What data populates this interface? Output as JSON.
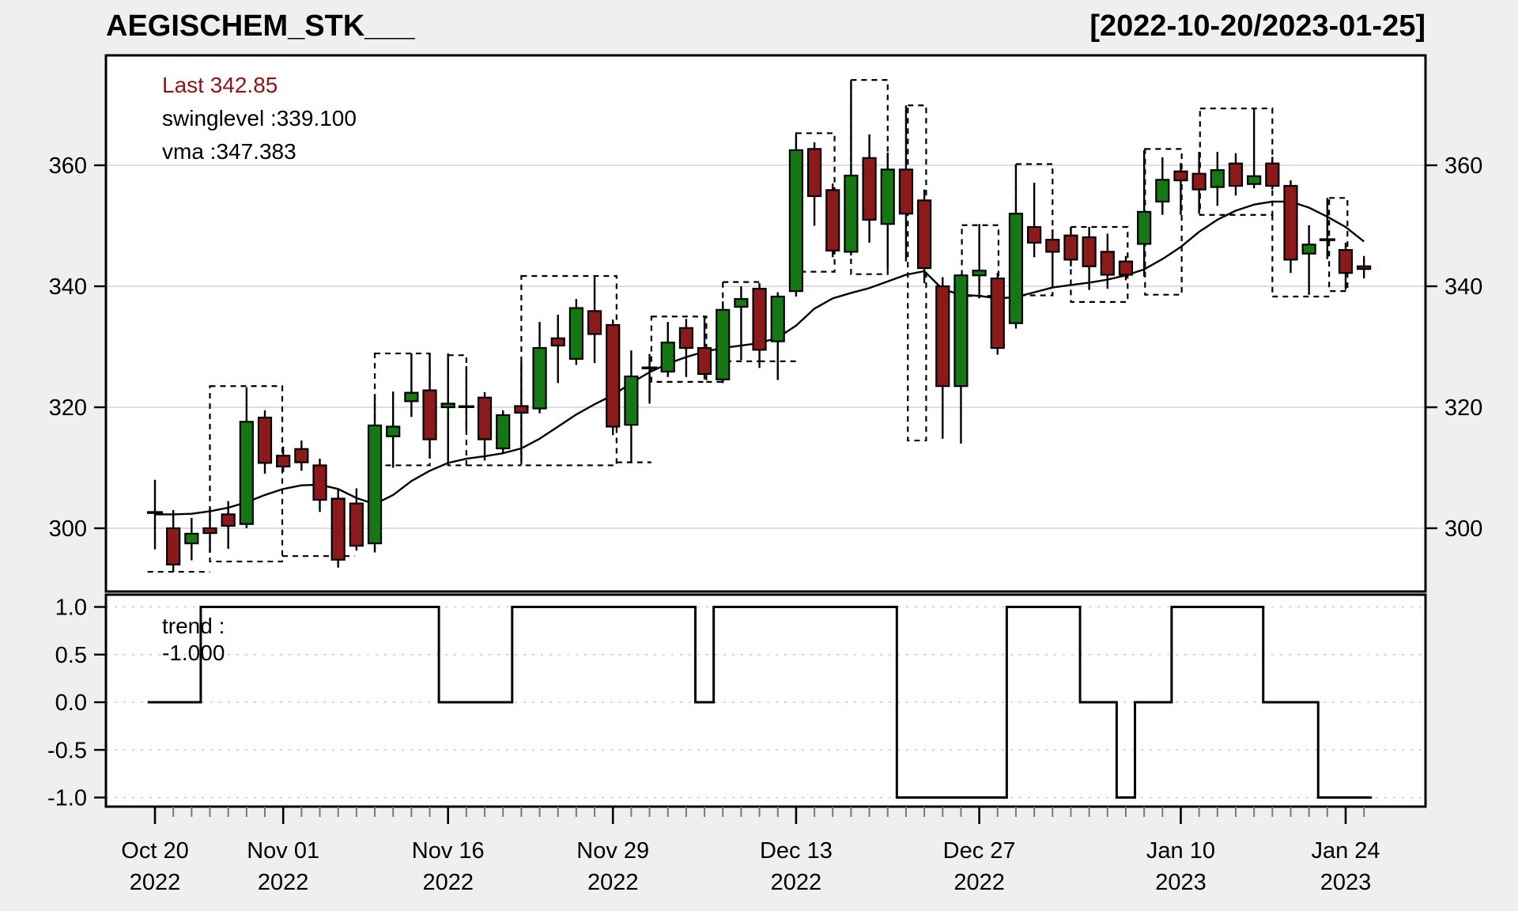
{
  "title": "AEGISCHEM_STK___",
  "date_range": "[2022-10-20/2023-01-25]",
  "legend": {
    "last": "Last 342.85",
    "swinglevel": "swinglevel :339.100",
    "vma": "vma :347.383"
  },
  "trend_label": {
    "line1": "trend :",
    "line2": "-1.000"
  },
  "colors": {
    "up": "#157815",
    "down": "#8c1a1a",
    "outline": "#000000",
    "background": "#efefef",
    "panel": "#ffffff",
    "grid": "#d4d4d4",
    "trend_grid": "#c9c9c9",
    "last_text": "#8b1414",
    "minor_tick": "#777777"
  },
  "y_axis": {
    "price_ticks": [
      360,
      340,
      320,
      300
    ],
    "trend_ticks": [
      {
        "v": 1.0,
        "label": "1.0"
      },
      {
        "v": 0.5,
        "label": "0.5"
      },
      {
        "v": 0.0,
        "label": "0.0"
      },
      {
        "v": -0.5,
        "label": "-0.5"
      },
      {
        "v": -1.0,
        "label": "-1.0"
      }
    ]
  },
  "x_axis": {
    "labels": [
      {
        "idx": 1,
        "l1": "Oct 20",
        "l2": "2022"
      },
      {
        "idx": 8,
        "l1": "Nov 01",
        "l2": "2022"
      },
      {
        "idx": 17,
        "l1": "Nov 16",
        "l2": "2022"
      },
      {
        "idx": 26,
        "l1": "Nov 29",
        "l2": "2022"
      },
      {
        "idx": 36,
        "l1": "Dec 13",
        "l2": "2022"
      },
      {
        "idx": 46,
        "l1": "Dec 27",
        "l2": "2022"
      },
      {
        "idx": 57,
        "l1": "Jan 10",
        "l2": "2023"
      },
      {
        "idx": 66,
        "l1": "Jan 24",
        "l2": "2023"
      }
    ]
  },
  "chart_data": {
    "type": "candlestick",
    "title": "AEGISCHEM_STK___",
    "subpanel": "trend",
    "x_range_dates": [
      "2022-10-20",
      "2023-01-25"
    ],
    "price_axis_ticks": [
      300,
      320,
      340,
      360
    ],
    "price_range_shown": [
      289.5,
      378.5
    ],
    "trend_range_shown": [
      -1.1,
      1.12
    ],
    "last": 342.85,
    "swinglevel": 339.1,
    "vma_last": 347.383,
    "trend_last": -1.0,
    "ohlc": [
      [
        302.6,
        308.0,
        296.5,
        302.6
      ],
      [
        300.0,
        303.0,
        292.8,
        294.0
      ],
      [
        297.5,
        301.7,
        294.7,
        299.1
      ],
      [
        300.0,
        303.3,
        296.0,
        299.2
      ],
      [
        302.3,
        304.5,
        296.6,
        300.4
      ],
      [
        300.7,
        323.3,
        300.0,
        317.6
      ],
      [
        318.3,
        319.5,
        309.0,
        310.8
      ],
      [
        312.0,
        313.5,
        309.3,
        310.2
      ],
      [
        313.1,
        314.5,
        309.5,
        310.9
      ],
      [
        310.4,
        311.5,
        302.7,
        304.7
      ],
      [
        304.9,
        306.5,
        293.5,
        294.8
      ],
      [
        304.1,
        306.6,
        296.3,
        297.1
      ],
      [
        297.5,
        322.0,
        296.1,
        317.0
      ],
      [
        315.2,
        322.6,
        310.0,
        316.8
      ],
      [
        321.0,
        328.9,
        318.4,
        322.4
      ],
      [
        322.8,
        328.9,
        311.5,
        314.7
      ],
      [
        320.0,
        328.9,
        310.6,
        320.6
      ],
      [
        320.1,
        326.8,
        316.3,
        320.1
      ],
      [
        321.6,
        322.5,
        311.2,
        314.7
      ],
      [
        313.2,
        319.5,
        312.5,
        318.7
      ],
      [
        320.2,
        327.6,
        311.1,
        319.1
      ],
      [
        319.8,
        334.1,
        319.0,
        329.8
      ],
      [
        331.4,
        335.3,
        324.0,
        330.2
      ],
      [
        328.0,
        337.9,
        327.0,
        336.4
      ],
      [
        335.9,
        341.7,
        327.3,
        332.1
      ],
      [
        333.6,
        334.5,
        315.4,
        316.8
      ],
      [
        317.1,
        329.4,
        310.8,
        325.1
      ],
      [
        326.5,
        328.8,
        320.6,
        326.5
      ],
      [
        325.9,
        334.1,
        325.0,
        330.7
      ],
      [
        333.1,
        334.6,
        325.0,
        329.8
      ],
      [
        329.8,
        335.0,
        324.6,
        325.5
      ],
      [
        324.6,
        337.5,
        324.0,
        336.1
      ],
      [
        336.6,
        340.0,
        327.8,
        337.9
      ],
      [
        339.6,
        340.5,
        326.5,
        329.5
      ],
      [
        330.9,
        339.0,
        324.5,
        338.3
      ],
      [
        339.2,
        364.8,
        338.3,
        362.5
      ],
      [
        362.7,
        363.8,
        350.0,
        354.9
      ],
      [
        355.9,
        357.0,
        344.8,
        345.9
      ],
      [
        345.7,
        374.1,
        345.1,
        358.3
      ],
      [
        361.2,
        365.1,
        347.2,
        351.0
      ],
      [
        350.3,
        362.1,
        342.8,
        359.3
      ],
      [
        359.3,
        369.9,
        344.1,
        352.0
      ],
      [
        354.2,
        356.0,
        340.5,
        343.0
      ],
      [
        340.0,
        341.5,
        314.8,
        323.5
      ],
      [
        323.5,
        342.0,
        314.0,
        341.8
      ],
      [
        341.8,
        350.3,
        338.0,
        342.6
      ],
      [
        341.3,
        342.2,
        328.7,
        329.8
      ],
      [
        333.9,
        360.2,
        333.0,
        352.0
      ],
      [
        349.8,
        357.1,
        344.8,
        347.2
      ],
      [
        347.7,
        349.4,
        340.0,
        345.7
      ],
      [
        348.4,
        349.8,
        343.3,
        344.4
      ],
      [
        348.1,
        349.8,
        339.4,
        343.3
      ],
      [
        345.7,
        348.7,
        339.6,
        341.9
      ],
      [
        344.1,
        345.0,
        341.0,
        341.9
      ],
      [
        347.0,
        362.5,
        341.6,
        352.3
      ],
      [
        354.0,
        361.3,
        351.8,
        357.6
      ],
      [
        359.0,
        360.4,
        351.8,
        357.5
      ],
      [
        358.6,
        362.2,
        352.0,
        356.0
      ],
      [
        356.4,
        362.2,
        353.3,
        359.2
      ],
      [
        360.3,
        362.0,
        355.0,
        356.6
      ],
      [
        356.9,
        369.3,
        356.2,
        358.2
      ],
      [
        360.3,
        361.4,
        356.0,
        356.6
      ],
      [
        356.6,
        357.5,
        342.2,
        344.4
      ],
      [
        345.4,
        350.1,
        338.6,
        346.9
      ],
      [
        347.7,
        354.6,
        344.5,
        347.7
      ],
      [
        346.0,
        347.2,
        339.4,
        342.2
      ],
      [
        343.3,
        345.0,
        341.3,
        342.85
      ]
    ],
    "vma": [
      302.3,
      302.3,
      302.4,
      302.8,
      303.4,
      304.3,
      305.5,
      306.5,
      307.1,
      307.2,
      306.5,
      305.0,
      304.0,
      305.5,
      307.8,
      309.5,
      310.8,
      311.5,
      311.9,
      312.4,
      313.2,
      314.8,
      316.8,
      318.8,
      320.5,
      322.0,
      324.0,
      325.8,
      327.2,
      328.3,
      329.2,
      329.8,
      330.2,
      330.6,
      331.5,
      333.5,
      336.3,
      338.0,
      338.9,
      339.7,
      340.8,
      341.9,
      342.5,
      339.5,
      338.6,
      338.4,
      338.0,
      338.2,
      339.0,
      339.8,
      340.2,
      340.6,
      341.1,
      341.8,
      342.8,
      344.5,
      346.5,
      349.0,
      351.0,
      352.5,
      353.5,
      354.0,
      354.0,
      353.0,
      351.5,
      349.8,
      347.4
    ],
    "trend": [
      0,
      0,
      0,
      1,
      1,
      1,
      1,
      1,
      1,
      1,
      1,
      1,
      1,
      1,
      1,
      1,
      0,
      0,
      0,
      0,
      1,
      1,
      1,
      1,
      1,
      1,
      1,
      1,
      1,
      1,
      0,
      1,
      1,
      1,
      1,
      1,
      1,
      1,
      1,
      1,
      1,
      -1,
      -1,
      -1,
      -1,
      -1,
      -1,
      1,
      1,
      1,
      1,
      0,
      0,
      -1,
      0,
      0,
      1,
      1,
      1,
      1,
      1,
      0,
      0,
      0,
      -1,
      -1,
      -1
    ],
    "swing_rects": [
      [
        4.0,
        7.95,
        323.5,
        294.5
      ],
      [
        13.0,
        16.0,
        328.9,
        310.4
      ],
      [
        17.0,
        18.0,
        328.6,
        310.4
      ],
      [
        21.0,
        26.2,
        341.7,
        310.4
      ],
      [
        28.1,
        31.1,
        335.0,
        324.2
      ],
      [
        32.0,
        34.0,
        340.7,
        327.6
      ],
      [
        36.0,
        38.1,
        365.3,
        342.4
      ],
      [
        39.0,
        41.0,
        374.1,
        342.0
      ],
      [
        42.1,
        43.1,
        369.9,
        314.5
      ],
      [
        45.05,
        47.05,
        350.1,
        338.4
      ],
      [
        48.0,
        50.0,
        360.2,
        338.5
      ],
      [
        51.0,
        54.1,
        349.8,
        337.4
      ],
      [
        55.05,
        57.05,
        362.7,
        338.6
      ],
      [
        58.05,
        62.0,
        369.4,
        351.8
      ],
      [
        65.1,
        66.1,
        354.6,
        339.2
      ]
    ],
    "swing_hsegs": [
      [
        0.6,
        4.0,
        292.8
      ],
      [
        7.95,
        11.9,
        295.4
      ],
      [
        18.0,
        21.0,
        310.4
      ],
      [
        26.2,
        28.1,
        310.9
      ],
      [
        31.1,
        32.0,
        324.2
      ],
      [
        34.0,
        36.0,
        327.6
      ],
      [
        62.0,
        65.1,
        338.3
      ]
    ],
    "swing_vsegs": [
      [
        13.0,
        310.4,
        296.0
      ],
      [
        62.0,
        351.8,
        338.3
      ]
    ]
  }
}
